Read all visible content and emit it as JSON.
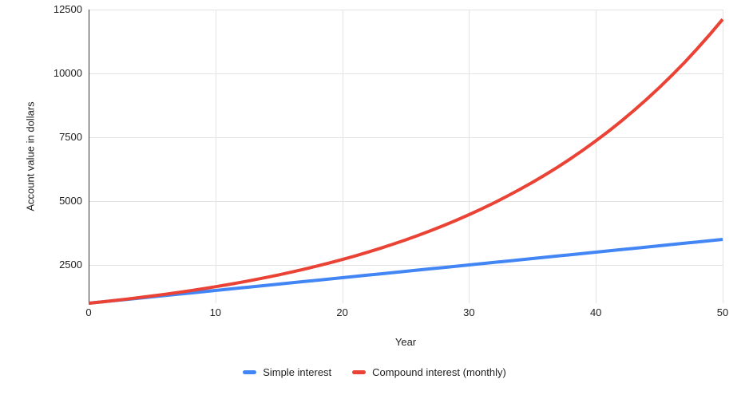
{
  "chart_data": {
    "type": "line",
    "title": "",
    "xlabel": "Year",
    "ylabel": "Account value in dollars",
    "xlim": [
      0,
      50
    ],
    "ylim": [
      1000,
      12500
    ],
    "x_ticks": [
      0,
      10,
      20,
      30,
      40,
      50
    ],
    "y_ticks": [
      2500,
      5000,
      7500,
      10000,
      12500
    ],
    "grid": true,
    "legend_position": "bottom",
    "x": [
      0,
      1,
      2,
      3,
      4,
      5,
      6,
      7,
      8,
      9,
      10,
      11,
      12,
      13,
      14,
      15,
      16,
      17,
      18,
      19,
      20,
      21,
      22,
      23,
      24,
      25,
      26,
      27,
      28,
      29,
      30,
      31,
      32,
      33,
      34,
      35,
      36,
      37,
      38,
      39,
      40,
      41,
      42,
      43,
      44,
      45,
      46,
      47,
      48,
      49,
      50
    ],
    "series": [
      {
        "name": "Simple interest",
        "color": "#4285F4",
        "values": [
          1000,
          1050,
          1100,
          1150,
          1200,
          1250,
          1300,
          1350,
          1400,
          1450,
          1500,
          1550,
          1600,
          1650,
          1700,
          1750,
          1800,
          1850,
          1900,
          1950,
          2000,
          2050,
          2100,
          2150,
          2200,
          2250,
          2300,
          2350,
          2400,
          2450,
          2500,
          2550,
          2600,
          2650,
          2700,
          2750,
          2800,
          2850,
          2900,
          2950,
          3000,
          3050,
          3100,
          3150,
          3200,
          3250,
          3300,
          3350,
          3400,
          3450,
          3500
        ]
      },
      {
        "name": "Compound interest (monthly)",
        "color": "#EA4335",
        "values": [
          1000,
          1051.16,
          1104.94,
          1161.47,
          1220.9,
          1283.36,
          1349.02,
          1418.04,
          1490.59,
          1566.85,
          1647.01,
          1731.28,
          1819.85,
          1912.96,
          2010.83,
          2113.71,
          2221.86,
          2335.54,
          2455.03,
          2580.64,
          2712.64,
          2851.42,
          2997.29,
          3150.63,
          3311.83,
          3481.28,
          3659.4,
          3846.63,
          4043.44,
          4250.32,
          4467.74,
          4696.33,
          4936.61,
          5189.19,
          5454.69,
          5733.79,
          6027.17,
          6335.55,
          6659.72,
          7000.46,
          7358.42,
          7734.91,
          8130.66,
          8546.66,
          8983.94,
          9443.6,
          9926.77,
          10434.67,
          10968.56,
          11529.77,
          12119.38
        ]
      }
    ]
  },
  "colors": {
    "grid": "#e3e3e3",
    "axis": "#333333",
    "background": "#ffffff"
  }
}
